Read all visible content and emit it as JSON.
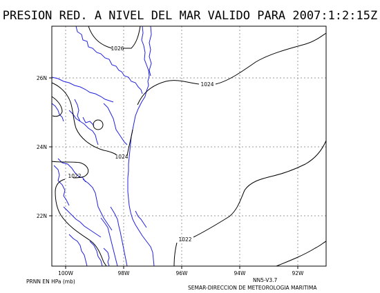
{
  "title": "PRESION RED. A NIVEL DEL MAR VALIDO PARA 2007:1:2:15Z",
  "lat_labels": [
    "26N",
    "24N",
    "22N"
  ],
  "lon_labels": [
    "100W",
    "98W",
    "96W",
    "94W",
    "92W"
  ],
  "isobar_labels": {
    "c1026": "1026",
    "c1024_top": "1024",
    "c1024_left": "1024",
    "c1022_left": "1022",
    "c1022_bottom": "1022"
  },
  "footer": {
    "units": "PRNN EN HPa (mb)",
    "version": "NN5-V3.7",
    "agency": "SEMAR-DIRECCION DE METEOROLOGIA MARITIMA"
  },
  "colors": {
    "coastline": "#2020e0",
    "isobar": "#000000",
    "grid": "#9a9a9a",
    "frame": "#000000"
  }
}
